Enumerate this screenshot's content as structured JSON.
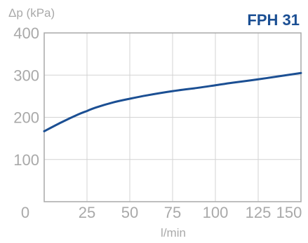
{
  "chart_data": {
    "type": "line",
    "title": "FPH 31",
    "ylabel": "Δp (kPa)",
    "xlabel": "l/min",
    "xlim": [
      0,
      150
    ],
    "ylim": [
      0,
      400
    ],
    "x_ticks": [
      0,
      25,
      50,
      75,
      100,
      125,
      150
    ],
    "x_tick_labels": [
      "0",
      "25",
      "50",
      "75",
      "100",
      "125",
      "150"
    ],
    "y_ticks": [
      100,
      200,
      300,
      400
    ],
    "y_tick_labels": [
      "100",
      "200",
      "300",
      "400"
    ],
    "grid": true,
    "series": [
      {
        "color": "#1b4f93",
        "x": [
          0,
          10,
          20,
          25,
          30,
          40,
          50,
          60,
          75,
          90,
          100,
          110,
          125,
          140,
          150
        ],
        "y": [
          167,
          188,
          207,
          215,
          223,
          235,
          244,
          252,
          262,
          270,
          276,
          282,
          290,
          299,
          305
        ]
      }
    ]
  },
  "colors": {
    "series": "#1b4f93",
    "title": "#1b4f93",
    "axis_text": "#a9a9a9",
    "grid": "#d3d3d3"
  }
}
